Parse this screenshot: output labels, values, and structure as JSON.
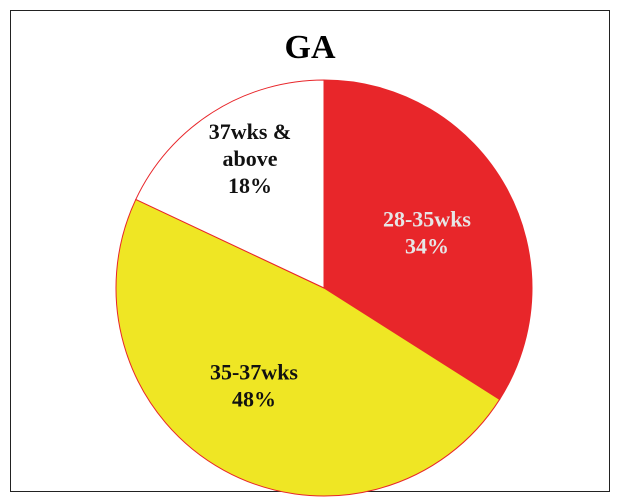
{
  "chart_data": {
    "type": "pie",
    "title": "GA",
    "slices": [
      {
        "label": "28-35wks",
        "label_lines": [
          "28-35wks"
        ],
        "value": 34,
        "value_label": "34%",
        "color": "#E8262A",
        "text_color": "#E6E6E6"
      },
      {
        "label": "35-37wks",
        "label_lines": [
          "35-37wks"
        ],
        "value": 48,
        "value_label": "48%",
        "color": "#EFE624",
        "text_color": "#111111"
      },
      {
        "label": "37wks & above",
        "label_lines": [
          "37wks &",
          "above"
        ],
        "value": 18,
        "value_label": "18%",
        "color": "#FFFFFF",
        "text_color": "#111111"
      }
    ],
    "start": "12 o'clock",
    "direction": "clockwise",
    "slice_border_color": "#E8262A"
  }
}
